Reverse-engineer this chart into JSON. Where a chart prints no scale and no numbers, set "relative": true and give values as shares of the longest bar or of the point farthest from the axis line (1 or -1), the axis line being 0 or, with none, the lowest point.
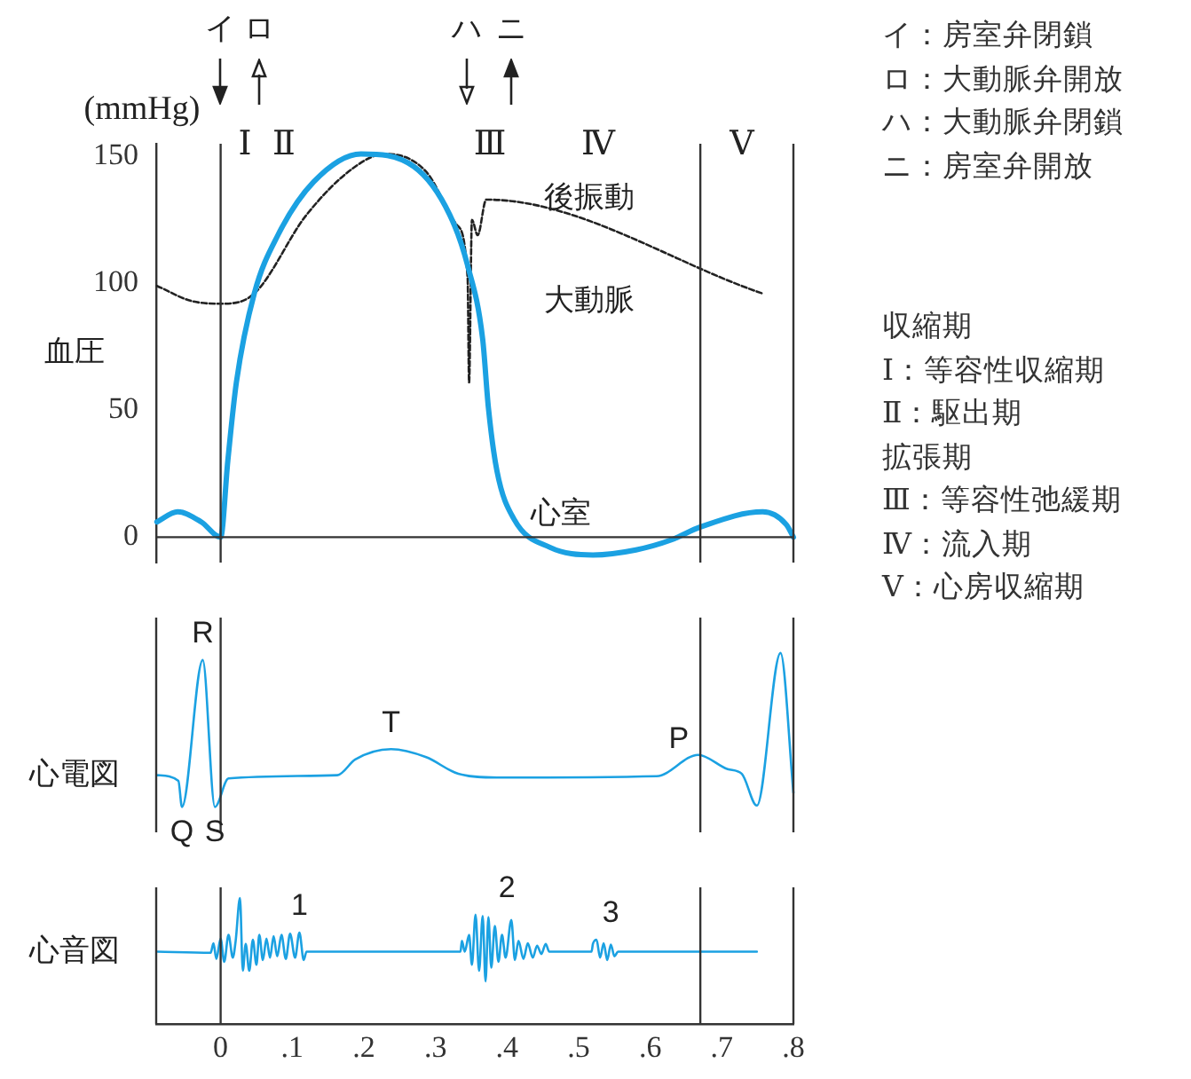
{
  "chart_data": [
    {
      "type": "line",
      "ylabel": "血圧",
      "xlim": [
        -0.09,
        0.8
      ],
      "ylim": [
        -10,
        155
      ],
      "yticks": [
        0,
        50,
        100,
        150
      ],
      "tick_labels": "y",
      "grid": false,
      "legend": false,
      "marker": "none",
      "series": [
        {
          "color": "#1ba1e2",
          "line_style": "solid",
          "x": [
            -0.089,
            -0.06,
            -0.027,
            0,
            0.01,
            0.022,
            0.047,
            0.08,
            0.13,
            0.196,
            0.27,
            0.32,
            0.345,
            0.366,
            0.374,
            0.386,
            0.41,
            0.46,
            0.52,
            0.58,
            0.63,
            0.67,
            0.757,
            0.79,
            0.8
          ],
          "values": [
            6,
            10,
            6,
            0,
            30,
            61,
            96,
            119,
            140,
            151,
            146,
            127,
            107,
            78,
            51,
            26,
            7,
            -4,
            -7,
            -5,
            -1,
            4,
            10,
            5,
            0
          ]
        },
        {
          "color": "#222222",
          "line_style": "dashed",
          "x": [
            -0.089,
            -0.04,
            0.002,
            0.047,
            0.12,
            0.188,
            0.23,
            0.287,
            0.33,
            0.345,
            0.347,
            0.351,
            0.359,
            0.371,
            0.757
          ],
          "values": [
            99,
            93,
            92,
            96,
            127,
            146,
            151,
            144,
            123,
            102,
            61,
            125,
            119,
            133,
            96
          ]
        }
      ],
      "ref_lines": [
        {
          "axis": "y",
          "value": 0
        },
        {
          "axis": "x",
          "value": 0
        },
        {
          "axis": "x",
          "value": 0.67
        }
      ],
      "annotations": [
        "(mmHg)",
        "イ",
        "ロ",
        "ハ",
        "ニ",
        "Ⅰ",
        "Ⅱ",
        "Ⅲ",
        "Ⅳ",
        "Ⅴ",
        "後振動",
        "大動脈",
        "心室"
      ]
    },
    {
      "type": "line",
      "ylabel": "心電図",
      "relative": true,
      "xlim": [
        -0.09,
        0.8
      ],
      "tick_labels": false,
      "grid": false,
      "legend": false,
      "marker": "none",
      "series": [
        {
          "color": "#1ba1e2",
          "line_style": "solid",
          "x": [
            -0.088,
            -0.059,
            -0.054,
            -0.025,
            -0.008,
            0.011,
            0.163,
            0.188,
            0.238,
            0.287,
            0.332,
            0.386,
            0.609,
            0.667,
            0.708,
            0.728,
            0.749,
            0.782,
            0.8
          ],
          "values": [
            0.206,
            0.169,
            0,
            0.954,
            0,
            0.185,
            0.206,
            0.308,
            0.375,
            0.323,
            0.215,
            0.191,
            0.2,
            0.338,
            0.246,
            0.215,
            0.009,
            1,
            0.092
          ]
        }
      ],
      "ref_lines": [
        {
          "axis": "x",
          "value": 0
        },
        {
          "axis": "x",
          "value": 0.67
        }
      ],
      "annotations": [
        {
          "text": "R",
          "x": -0.025,
          "y": 0.954
        },
        {
          "text": "Q",
          "x": -0.054,
          "y": 0
        },
        {
          "text": "S",
          "x": -0.008,
          "y": 0
        },
        {
          "text": "T",
          "x": 0.238,
          "y": 0.375
        },
        {
          "text": "P",
          "x": 0.64,
          "y": 0.27
        }
      ]
    },
    {
      "type": "line",
      "ylabel": "心音図",
      "relative": true,
      "xlim": [
        -0.09,
        0.8
      ],
      "xticks": [
        0,
        {
          "value": 0.1,
          "label": ".1"
        },
        {
          "value": 0.2,
          "label": ".2"
        },
        {
          "value": 0.3,
          "label": ".3"
        },
        {
          "value": 0.4,
          "label": ".4"
        },
        {
          "value": 0.5,
          "label": ".5"
        },
        {
          "value": 0.6,
          "label": ".6"
        },
        {
          "value": 0.7,
          "label": ".7"
        },
        {
          "value": 0.8,
          "label": ".8"
        }
      ],
      "tick_labels": "x",
      "grid": false,
      "legend": false,
      "marker": "none",
      "series": [
        {
          "color": "#1ba1e2",
          "line_style": "solid",
          "x": [
            -0.088,
            -0.014,
            -0.01,
            -0.006,
            0.0,
            0.005,
            0.011,
            0.017,
            0.021,
            0.027,
            0.031,
            0.035,
            0.04,
            0.045,
            0.05,
            0.054,
            0.059,
            0.064,
            0.069,
            0.074,
            0.079,
            0.085,
            0.091,
            0.097,
            0.104,
            0.11,
            0.116,
            0.12,
            0.335,
            0.337,
            0.341,
            0.347,
            0.351,
            0.356,
            0.361,
            0.366,
            0.37,
            0.374,
            0.378,
            0.383,
            0.388,
            0.393,
            0.398,
            0.406,
            0.411,
            0.416,
            0.423,
            0.429,
            0.436,
            0.442,
            0.448,
            0.454,
            0.459,
            0.518,
            0.52,
            0.525,
            0.53,
            0.535,
            0.54,
            0.545,
            0.55,
            0.555,
            0.749
          ],
          "values": [
            0.574,
            0.565,
            0.641,
            0.517,
            0.678,
            0.494,
            0.707,
            0.527,
            0.66,
            1,
            0.423,
            0.636,
            0.423,
            0.669,
            0.47,
            0.707,
            0.508,
            0.678,
            0.527,
            0.697,
            0.537,
            0.707,
            0.517,
            0.716,
            0.527,
            0.726,
            0.508,
            0.574,
            0.574,
            0.66,
            0.574,
            0.707,
            0.47,
            0.868,
            0.423,
            0.858,
            0.338,
            0.848,
            0.447,
            0.778,
            0.494,
            0.707,
            0.527,
            0.825,
            0.508,
            0.66,
            0.517,
            0.641,
            0.527,
            0.622,
            0.556,
            0.636,
            0.574,
            0.574,
            0.636,
            0.669,
            0.527,
            0.641,
            0.508,
            0.631,
            0.537,
            0.574,
            0.574
          ]
        }
      ],
      "ref_lines": [
        {
          "axis": "x",
          "value": 0
        },
        {
          "axis": "x",
          "value": 0.67
        }
      ],
      "annotations": [
        {
          "text": "1",
          "x": 0.11,
          "y": 0.726
        },
        {
          "text": "2",
          "x": 0.4,
          "y": 0.868
        },
        {
          "text": "3",
          "x": 0.545,
          "y": 0.669
        }
      ]
    },
    {
      "type": "other",
      "annotations": [
        "イ：房室弁閉鎖",
        "ロ：大動脈弁開放",
        "ハ：大動脈弁閉鎖",
        "ニ：房室弁開放"
      ]
    },
    {
      "type": "other",
      "annotations": [
        "収縮期",
        "Ⅰ：等容性収縮期",
        "Ⅱ：駆出期",
        "拡張期",
        "Ⅲ：等容性弛緩期",
        "Ⅳ：流入期",
        "Ⅴ：心房収縮期"
      ]
    }
  ]
}
